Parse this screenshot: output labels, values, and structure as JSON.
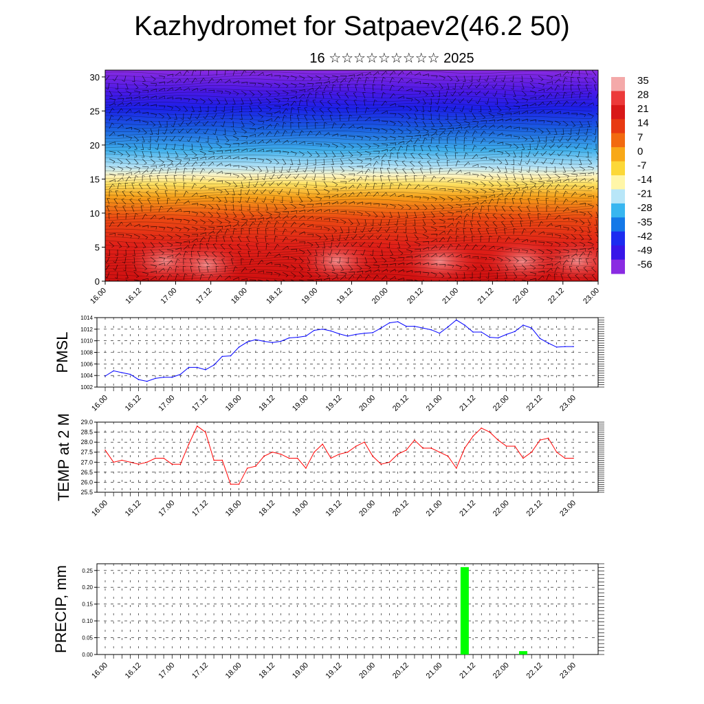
{
  "title": "Kazhydromet for Satpaev2(46.2 50)",
  "subtitle": "16 ☆☆☆☆☆☆☆☆☆ 2025",
  "chart_data": [
    {
      "type": "heatmap",
      "description_of_fields": "vertical cross-section: temperature shading with wind barbs",
      "ylim": [
        0,
        31
      ],
      "yticks": [
        "0",
        "5",
        "10",
        "15",
        "20",
        "25",
        "30"
      ],
      "yvals": [
        0,
        5,
        10,
        15,
        20,
        25,
        30
      ],
      "xtick_labels": [
        "16.00",
        "16.12",
        "17.00",
        "17.12",
        "18.00",
        "18.12",
        "19.00",
        "19.12",
        "20.00",
        "20.12",
        "21.00",
        "21.12",
        "22.00",
        "22.12",
        "23.00"
      ],
      "colorbar_labels": [
        "35",
        "28",
        "21",
        "14",
        "7",
        "0",
        "-7",
        "-14",
        "-21",
        "-28",
        "-35",
        "-42",
        "-49",
        "-56"
      ],
      "colorbar_colors": [
        "#f4a9a9",
        "#ec3a3a",
        "#d81818",
        "#e83a12",
        "#f26a10",
        "#f8a818",
        "#fcd838",
        "#fff6a8",
        "#b8e6f8",
        "#38b6f0",
        "#1478e8",
        "#1c2cf0",
        "#3816e8",
        "#8a2be2"
      ]
    },
    {
      "type": "line",
      "ylabel": "PMSL",
      "ylim": [
        1002,
        1014
      ],
      "yticks": [
        "1002",
        "1004",
        "1006",
        "1008",
        "1010",
        "1012",
        "1014"
      ],
      "xtick_labels": [
        "16.00",
        "16.12",
        "17.00",
        "17.12",
        "18.00",
        "18.12",
        "19.00",
        "19.12",
        "20.00",
        "20.12",
        "21.00",
        "21.12",
        "22.00",
        "22.12",
        "23.00"
      ],
      "x": [
        0,
        1,
        2,
        3,
        4,
        5,
        6,
        7,
        8,
        9,
        10,
        11,
        12,
        13,
        14,
        15,
        16,
        17,
        18,
        19,
        20,
        21,
        22,
        23,
        24,
        25,
        26,
        27,
        28,
        29,
        30,
        31,
        32,
        33,
        34,
        35,
        36,
        37,
        38,
        39,
        40,
        41,
        42,
        43,
        44,
        45,
        46,
        47,
        48,
        49,
        50,
        51,
        52,
        53,
        54,
        55,
        56
      ],
      "values": [
        1003.9,
        1004.8,
        1004.5,
        1004.2,
        1003.3,
        1003.0,
        1003.5,
        1003.7,
        1003.7,
        1004.2,
        1005.4,
        1005.4,
        1005.0,
        1005.8,
        1007.3,
        1007.4,
        1008.9,
        1009.8,
        1010.2,
        1009.9,
        1009.7,
        1009.9,
        1010.5,
        1010.6,
        1010.8,
        1011.8,
        1012.0,
        1011.7,
        1011.2,
        1010.8,
        1011.1,
        1011.3,
        1011.4,
        1012.2,
        1013.1,
        1013.3,
        1012.5,
        1012.5,
        1012.2,
        1011.9,
        1011.3,
        1012.4,
        1013.6,
        1012.7,
        1011.5,
        1011.5,
        1010.6,
        1010.5,
        1011.1,
        1011.6,
        1012.7,
        1012.2,
        1010.4,
        1009.6,
        1008.9,
        1009.0,
        1009.0
      ],
      "color": "#0000ff"
    },
    {
      "type": "line",
      "ylabel": "TEMP at 2 M",
      "ylim": [
        25.5,
        29.0
      ],
      "yticks": [
        "25.5",
        "26.0",
        "26.5",
        "27.0",
        "27.5",
        "28.0",
        "28.5",
        "29.0"
      ],
      "xtick_labels": [
        "16.00",
        "16.12",
        "17.00",
        "17.12",
        "18.00",
        "18.12",
        "19.00",
        "19.12",
        "20.00",
        "20.12",
        "21.00",
        "21.12",
        "22.00",
        "22.12",
        "23.00"
      ],
      "x": [
        0,
        1,
        2,
        3,
        4,
        5,
        6,
        7,
        8,
        9,
        10,
        11,
        12,
        13,
        14,
        15,
        16,
        17,
        18,
        19,
        20,
        21,
        22,
        23,
        24,
        25,
        26,
        27,
        28,
        29,
        30,
        31,
        32,
        33,
        34,
        35,
        36,
        37,
        38,
        39,
        40,
        41,
        42,
        43,
        44,
        45,
        46,
        47,
        48,
        49,
        50,
        51,
        52,
        53,
        54,
        55,
        56
      ],
      "values": [
        27.6,
        27.0,
        27.1,
        27.0,
        26.9,
        27.0,
        27.2,
        27.2,
        26.9,
        26.9,
        27.9,
        28.8,
        28.5,
        27.1,
        27.1,
        25.9,
        25.9,
        26.7,
        26.8,
        27.3,
        27.5,
        27.4,
        27.2,
        27.2,
        26.7,
        27.5,
        27.9,
        27.2,
        27.4,
        27.5,
        27.8,
        28.0,
        27.3,
        26.9,
        27.0,
        27.4,
        27.6,
        28.1,
        27.7,
        27.7,
        27.5,
        27.3,
        26.7,
        27.7,
        28.3,
        28.7,
        28.5,
        28.1,
        27.8,
        27.8,
        27.2,
        27.5,
        28.1,
        28.2,
        27.5,
        27.2,
        27.2
      ],
      "color": "#ff0000"
    },
    {
      "type": "bar",
      "ylabel": "PRECIP, mm",
      "ylim": [
        0,
        0.27
      ],
      "yticks": [
        "0.00",
        "0.05",
        "0.10",
        "0.15",
        "0.20",
        "0.25"
      ],
      "xtick_labels": [
        "16.00",
        "16.12",
        "17.00",
        "17.12",
        "18.00",
        "18.12",
        "19.00",
        "19.12",
        "20.00",
        "20.12",
        "21.00",
        "21.12",
        "22.00",
        "22.12",
        "23.00"
      ],
      "x": [
        43,
        50
      ],
      "values": [
        0.26,
        0.01
      ],
      "color": "#00ff00"
    }
  ]
}
